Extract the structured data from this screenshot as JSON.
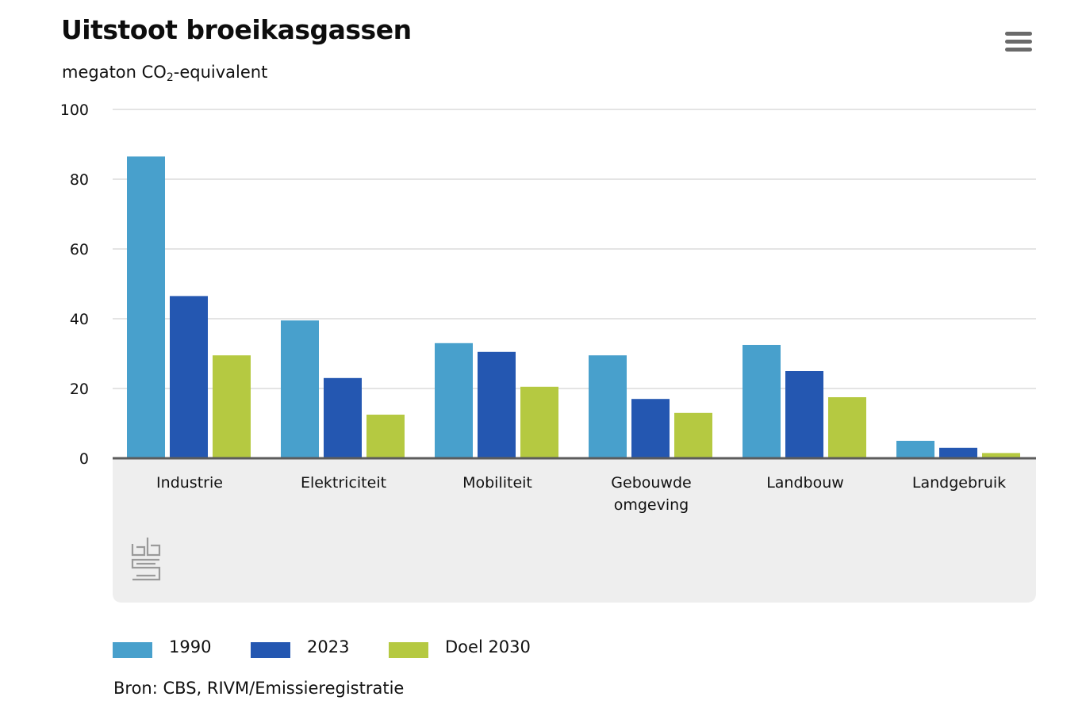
{
  "header": {
    "title": "Uitstoot broeikasgassen",
    "subtitle_pre": "megaton CO",
    "subtitle_sub": "2",
    "subtitle_post": "-equivalent",
    "menu_icon": "hamburger-menu-icon"
  },
  "logo": {
    "name": "cbs-logo-icon",
    "text": "cbs"
  },
  "source": "Bron: CBS, RIVM/Emissieregistratie",
  "colors": {
    "s1990": "#48a0cc",
    "s2023": "#2457b1",
    "doel2030": "#b5c941",
    "axis": "#5c5c5c",
    "grid": "#c8c8c8",
    "category_band": "#eeeeee"
  },
  "chart_data": {
    "type": "bar",
    "title": "Uitstoot broeikasgassen",
    "ylabel": "megaton CO2-equivalent",
    "xlabel": "",
    "ylim": [
      0,
      100
    ],
    "yticks": [
      0,
      20,
      40,
      60,
      80,
      100
    ],
    "grid": true,
    "legend_position": "bottom",
    "categories": [
      "Industrie",
      "Elektriciteit",
      "Mobiliteit",
      "Gebouwde omgeving",
      "Landbouw",
      "Landgebruik"
    ],
    "series": [
      {
        "name": "1990",
        "color": "#48a0cc",
        "values": [
          86.5,
          39.5,
          33.0,
          29.5,
          32.5,
          5.0
        ]
      },
      {
        "name": "2023",
        "color": "#2457b1",
        "values": [
          46.5,
          23.0,
          30.5,
          17.0,
          25.0,
          3.0
        ]
      },
      {
        "name": "Doel 2030",
        "color": "#b5c941",
        "values": [
          29.5,
          12.5,
          20.5,
          13.0,
          17.5,
          1.5
        ]
      }
    ]
  }
}
